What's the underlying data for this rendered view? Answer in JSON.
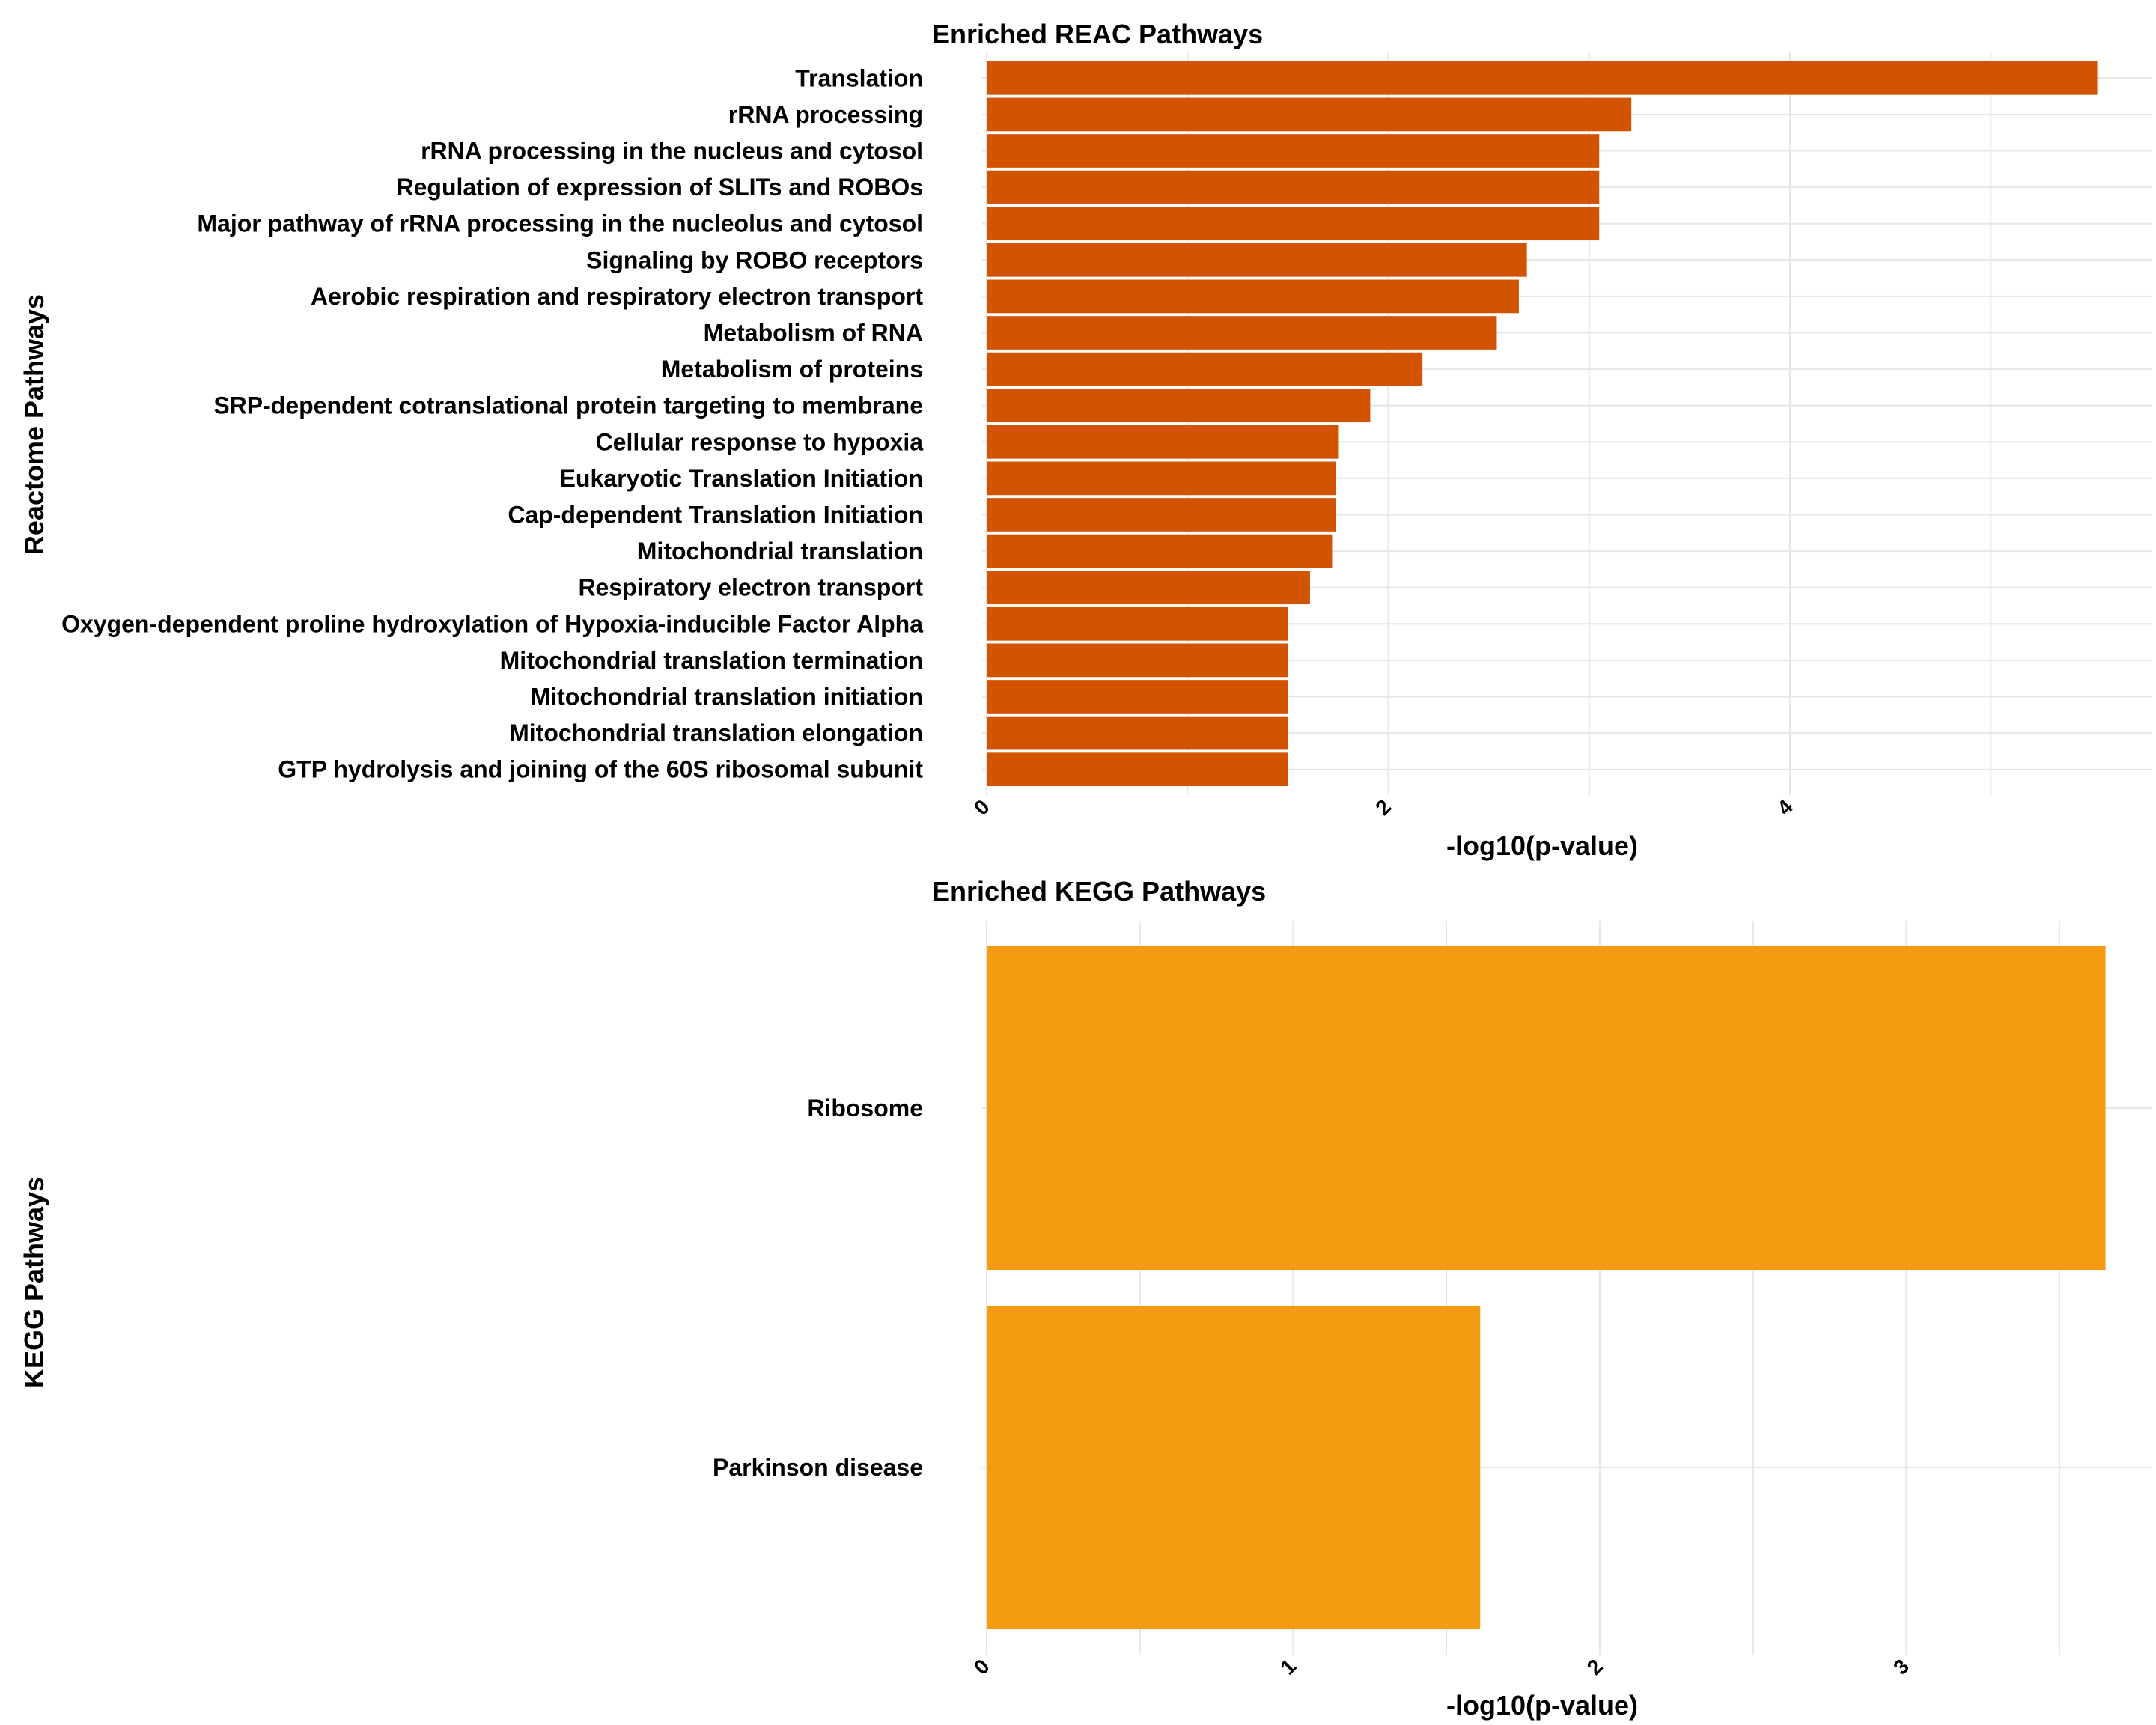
{
  "chart_data": [
    {
      "type": "bar",
      "orientation": "horizontal",
      "title": "Enriched REAC Pathways",
      "xlabel": "-log10(p-value)",
      "ylabel": "Reactome Pathways",
      "xlim": [
        0,
        5.8
      ],
      "xticks": [
        "0",
        "2",
        "4"
      ],
      "grid": true,
      "bar_color": "#D35400",
      "categories": [
        "Translation",
        "rRNA processing",
        "rRNA processing in the nucleus and cytosol",
        "Regulation of expression of SLITs and ROBOs",
        "Major pathway of rRNA processing in the nucleolus and cytosol",
        "Signaling by ROBO receptors",
        "Aerobic respiration and respiratory electron transport",
        "Metabolism of RNA",
        "Metabolism of proteins",
        "SRP-dependent cotranslational protein targeting to membrane",
        "Cellular response to hypoxia",
        "Eukaryotic Translation Initiation",
        "Cap-dependent Translation Initiation",
        "Mitochondrial translation",
        "Respiratory electron transport",
        "Oxygen-dependent proline hydroxylation of Hypoxia-inducible Factor Alpha",
        "Mitochondrial translation termination",
        "Mitochondrial translation initiation",
        "Mitochondrial translation elongation",
        "GTP hydrolysis and joining of the 60S ribosomal subunit"
      ],
      "values": [
        5.53,
        3.21,
        3.05,
        3.05,
        3.05,
        2.69,
        2.65,
        2.54,
        2.17,
        1.91,
        1.75,
        1.74,
        1.74,
        1.72,
        1.61,
        1.5,
        1.5,
        1.5,
        1.5,
        1.5
      ]
    },
    {
      "type": "bar",
      "orientation": "horizontal",
      "title": "Enriched KEGG Pathways",
      "xlabel": "-log10(p-value)",
      "ylabel": "KEGG Pathways",
      "xlim": [
        0,
        3.8
      ],
      "xticks": [
        "0",
        "1",
        "2",
        "3"
      ],
      "grid": true,
      "bar_color": "#F39C12",
      "categories": [
        "Ribosome",
        "Parkinson disease"
      ],
      "values": [
        3.65,
        1.61
      ]
    }
  ]
}
